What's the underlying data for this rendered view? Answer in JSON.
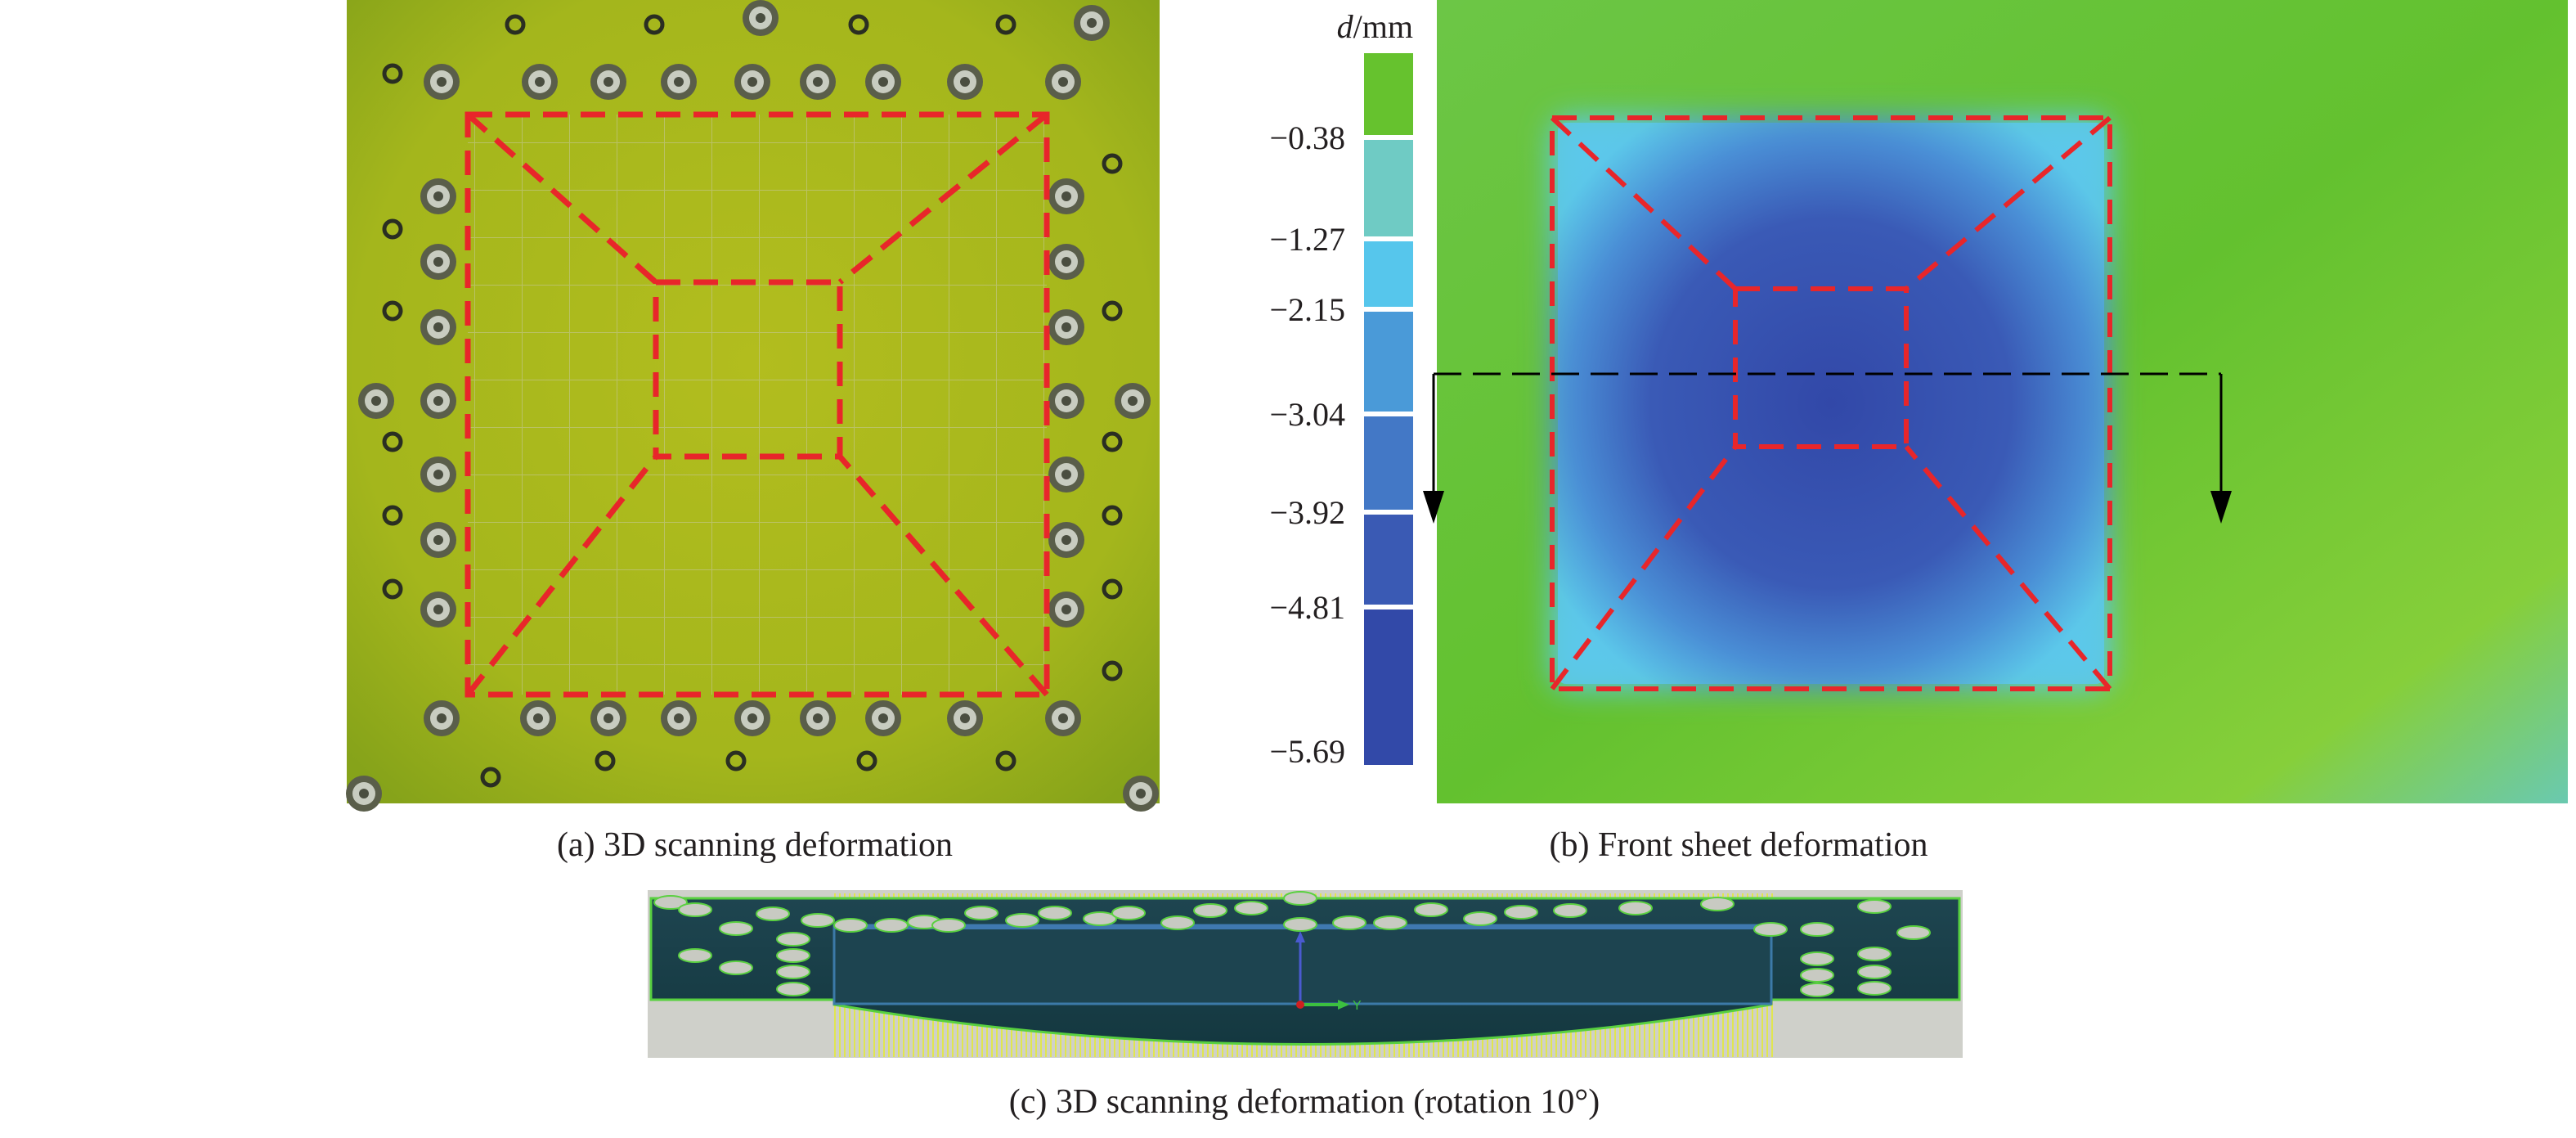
{
  "panels": {
    "a": {
      "caption": "(a) 3D scanning deformation"
    },
    "b": {
      "caption": "(b) Front sheet deformation"
    },
    "c": {
      "caption": "(c) 3D scanning deformation (rotation 10°)",
      "axis_label": "Y"
    }
  },
  "colorbar": {
    "title_var": "d",
    "title_unit": "/mm",
    "ticks": [
      "−0.38",
      "−1.27",
      "−2.15",
      "−3.04",
      "−3.92",
      "−4.81",
      "−5.69"
    ],
    "colors": [
      "#66c22e",
      "#6fcbc4",
      "#56c6ec",
      "#4a9ad8",
      "#4378c6",
      "#3a5ab4",
      "#3249a8"
    ]
  },
  "colors": {
    "outline_dashed": "#e8262a",
    "section_line": "#000000",
    "sheet_green": "#62c030",
    "deformed_blue": "#3551ab",
    "photo_yellow_green": "#a8b620",
    "scan_dark": "#14373d"
  }
}
